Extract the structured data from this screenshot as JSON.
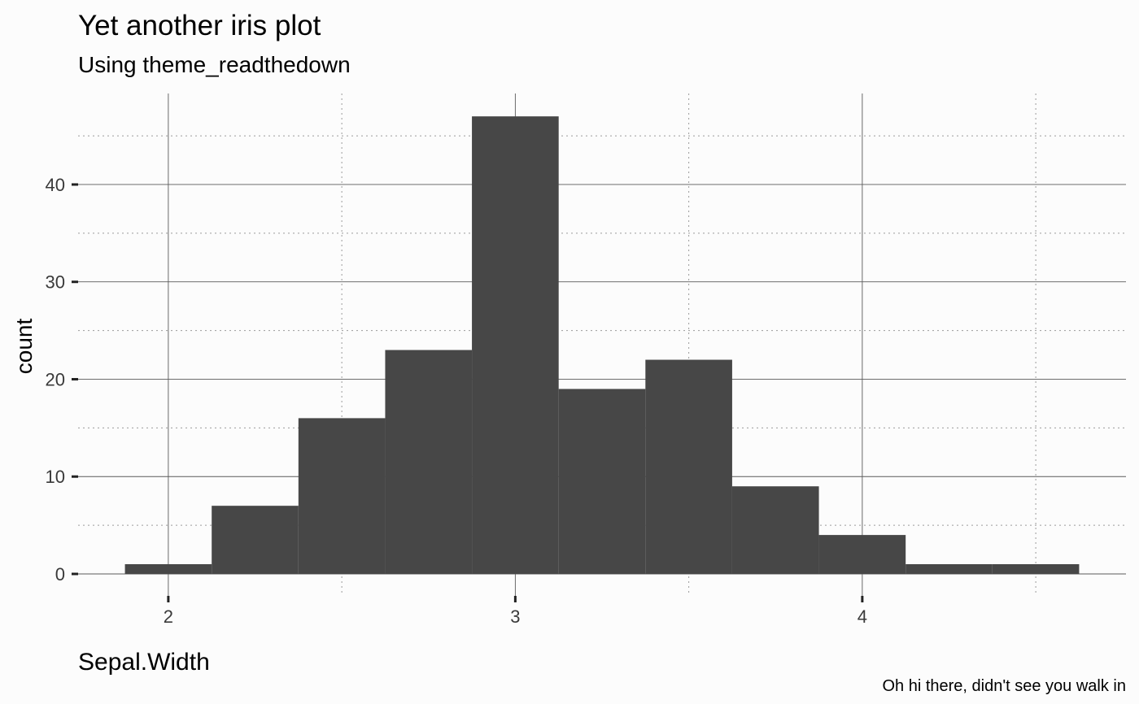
{
  "chart_data": {
    "type": "bar",
    "title": "Yet another iris plot",
    "subtitle": "Using theme_readthedown",
    "xlabel": "Sepal.Width",
    "ylabel": "count",
    "caption": "Oh hi there, didn't see you walk in",
    "bin_width": 0.25,
    "bins": [
      {
        "start": 1.875,
        "end": 2.125,
        "count": 1
      },
      {
        "start": 2.125,
        "end": 2.375,
        "count": 7
      },
      {
        "start": 2.375,
        "end": 2.625,
        "count": 16
      },
      {
        "start": 2.625,
        "end": 2.875,
        "count": 23
      },
      {
        "start": 2.875,
        "end": 3.125,
        "count": 47
      },
      {
        "start": 3.125,
        "end": 3.375,
        "count": 19
      },
      {
        "start": 3.375,
        "end": 3.625,
        "count": 22
      },
      {
        "start": 3.625,
        "end": 3.875,
        "count": 9
      },
      {
        "start": 3.875,
        "end": 4.125,
        "count": 4
      },
      {
        "start": 4.125,
        "end": 4.375,
        "count": 1
      },
      {
        "start": 4.375,
        "end": 4.625,
        "count": 1
      }
    ],
    "xlim": [
      1.74,
      4.76
    ],
    "ylim": [
      0,
      49.35
    ],
    "x_ticks": [
      2,
      3,
      4
    ],
    "x_tick_labels": [
      "2",
      "3",
      "4"
    ],
    "x_minor_ticks": [
      2.5,
      3.5,
      4.5
    ],
    "y_ticks": [
      0,
      10,
      20,
      30,
      40
    ],
    "y_tick_labels": [
      "0",
      "10",
      "20",
      "30",
      "40"
    ],
    "y_minor_ticks": [
      5,
      15,
      25,
      35,
      45
    ],
    "grid": true,
    "bar_color": "#474747",
    "background_color": "#fcfcfc"
  }
}
